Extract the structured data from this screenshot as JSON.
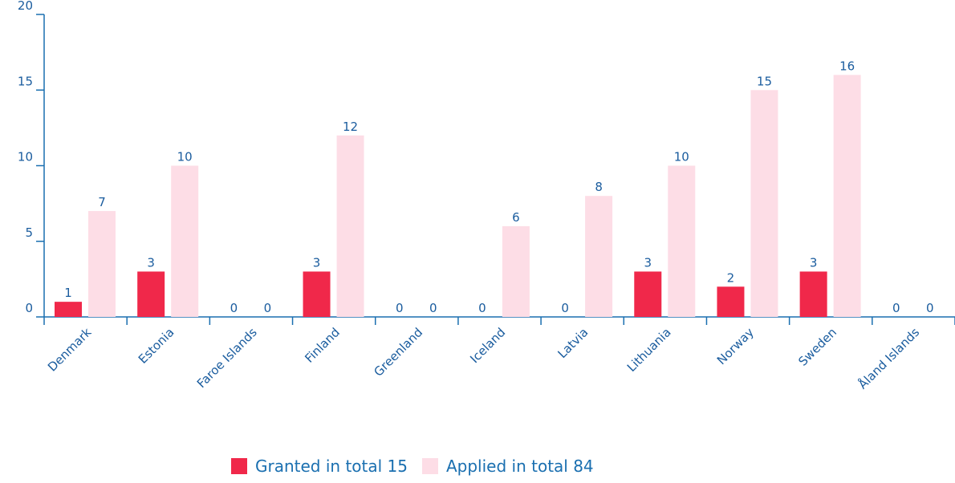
{
  "chart_data": {
    "type": "bar",
    "categories": [
      "Denmark",
      "Estonia",
      "Faroe Islands",
      "Finland",
      "Greenland",
      "Iceland",
      "Latvia",
      "Lithuania",
      "Norway",
      "Sweden",
      "Åland Islands"
    ],
    "series": [
      {
        "name": "Granted in total 15",
        "color": "#f0284a",
        "values": [
          1,
          3,
          0,
          3,
          0,
          0,
          0,
          3,
          2,
          3,
          0
        ]
      },
      {
        "name": "Applied in total 84",
        "color": "#fddde6",
        "values": [
          7,
          10,
          0,
          12,
          0,
          6,
          8,
          10,
          15,
          16,
          0
        ]
      }
    ],
    "ylim": [
      0,
      20
    ],
    "yticks": [
      0,
      5,
      10,
      15,
      20
    ],
    "grid": false
  }
}
